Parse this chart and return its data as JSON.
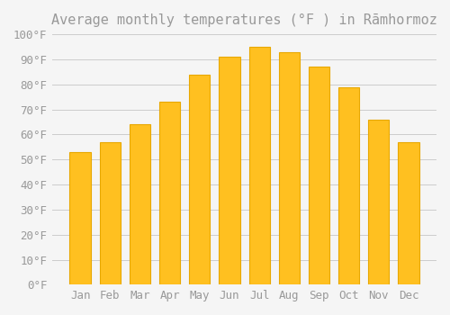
{
  "title": "Average monthly temperatures (°F ) in Rāmhormoz",
  "months": [
    "Jan",
    "Feb",
    "Mar",
    "Apr",
    "May",
    "Jun",
    "Jul",
    "Aug",
    "Sep",
    "Oct",
    "Nov",
    "Dec"
  ],
  "values": [
    53,
    57,
    64,
    73,
    84,
    91,
    95,
    93,
    87,
    79,
    66,
    57
  ],
  "bar_color": "#FFC020",
  "bar_edge_color": "#E8A800",
  "background_color": "#F5F5F5",
  "grid_color": "#CCCCCC",
  "text_color": "#999999",
  "ylim": [
    0,
    100
  ],
  "yticks": [
    0,
    10,
    20,
    30,
    40,
    50,
    60,
    70,
    80,
    90,
    100
  ],
  "ytick_labels": [
    "0°F",
    "10°F",
    "20°F",
    "30°F",
    "40°F",
    "50°F",
    "60°F",
    "70°F",
    "80°F",
    "90°F",
    "100°F"
  ],
  "title_fontsize": 11,
  "tick_fontsize": 9
}
